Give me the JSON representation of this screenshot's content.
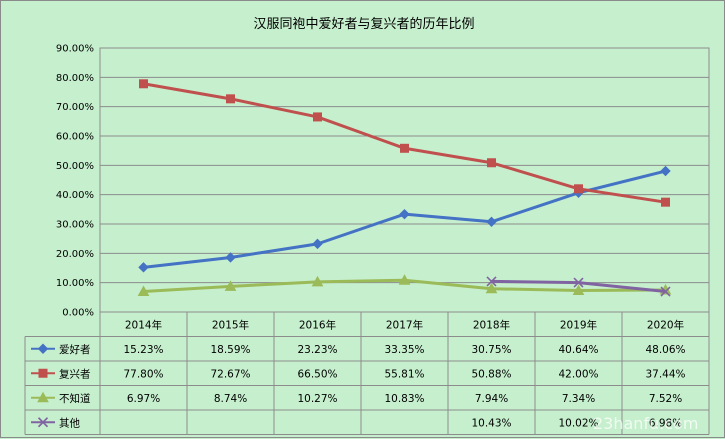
{
  "chart_data": {
    "type": "line",
    "title": "汉服同袍中爱好者与复兴者的历年比例",
    "categories": [
      "2014年",
      "2015年",
      "2016年",
      "2017年",
      "2018年",
      "2019年",
      "2020年"
    ],
    "ylim": [
      0,
      0.9
    ],
    "yticks": [
      "0.00%",
      "10.00%",
      "20.00%",
      "30.00%",
      "40.00%",
      "50.00%",
      "60.00%",
      "70.00%",
      "80.00%",
      "90.00%"
    ],
    "grid": true,
    "legend": "data-table",
    "series": [
      {
        "name": "爱好者",
        "color": "#4472c4",
        "marker": "diamond",
        "values": [
          0.1523,
          0.1859,
          0.2323,
          0.3335,
          0.3075,
          0.4064,
          0.4806
        ],
        "labels": [
          "15.23%",
          "18.59%",
          "23.23%",
          "33.35%",
          "30.75%",
          "40.64%",
          "48.06%"
        ]
      },
      {
        "name": "复兴者",
        "color": "#c0504d",
        "marker": "square",
        "values": [
          0.778,
          0.7267,
          0.665,
          0.5581,
          0.5088,
          0.42,
          0.3744
        ],
        "labels": [
          "77.80%",
          "72.67%",
          "66.50%",
          "55.81%",
          "50.88%",
          "42.00%",
          "37.44%"
        ]
      },
      {
        "name": "不知道",
        "color": "#9bbb59",
        "marker": "triangle",
        "values": [
          0.0697,
          0.0874,
          0.1027,
          0.1083,
          0.0794,
          0.0734,
          0.0752
        ],
        "labels": [
          "6.97%",
          "8.74%",
          "10.27%",
          "10.83%",
          "7.94%",
          "7.34%",
          "7.52%"
        ]
      },
      {
        "name": "其他",
        "color": "#8064a2",
        "marker": "x",
        "values": [
          null,
          null,
          null,
          null,
          0.1043,
          0.1002,
          0.0698
        ],
        "labels": [
          "",
          "",
          "",
          "",
          "10.43%",
          "10.02%",
          "6.98%"
        ]
      }
    ]
  },
  "watermark": "23hanfu.com"
}
